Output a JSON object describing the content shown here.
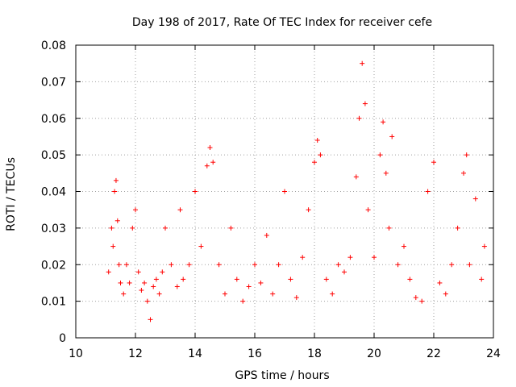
{
  "chart_data": {
    "type": "scatter",
    "title": "Day 198 of 2017, Rate Of TEC Index for receiver cefe",
    "xlabel": "GPS time / hours",
    "ylabel": "ROTI / TECUs",
    "xlim": [
      10,
      24
    ],
    "ylim": [
      0,
      0.08
    ],
    "xticks": [
      "10",
      "12",
      "14",
      "16",
      "18",
      "20",
      "22",
      "24"
    ],
    "yticks": [
      "0",
      "0.01",
      "0.02",
      "0.03",
      "0.04",
      "0.05",
      "0.06",
      "0.07",
      "0.08"
    ],
    "grid": true,
    "marker": "+",
    "marker_color": "#ff0000",
    "series": [
      {
        "name": "ROTI",
        "x": [
          11.1,
          11.2,
          11.25,
          11.3,
          11.35,
          11.4,
          11.45,
          11.5,
          11.6,
          11.7,
          11.8,
          11.9,
          12.0,
          12.1,
          12.2,
          12.3,
          12.4,
          12.5,
          12.6,
          12.7,
          12.8,
          12.9,
          13.0,
          13.2,
          13.4,
          13.5,
          13.6,
          13.8,
          14.0,
          14.2,
          14.4,
          14.5,
          14.6,
          14.8,
          15.0,
          15.2,
          15.4,
          15.6,
          15.8,
          16.0,
          16.2,
          16.4,
          16.6,
          16.8,
          17.0,
          17.2,
          17.4,
          17.6,
          17.8,
          18.0,
          18.1,
          18.2,
          18.4,
          18.6,
          18.8,
          19.0,
          19.2,
          19.4,
          19.5,
          19.6,
          19.7,
          19.8,
          20.0,
          20.2,
          20.3,
          20.4,
          20.5,
          20.6,
          20.8,
          21.0,
          21.2,
          21.4,
          21.6,
          21.8,
          22.0,
          22.2,
          22.4,
          22.6,
          22.8,
          23.0,
          23.1,
          23.2,
          23.4,
          23.6,
          23.7
        ],
        "y": [
          0.018,
          0.03,
          0.025,
          0.04,
          0.043,
          0.032,
          0.02,
          0.015,
          0.012,
          0.02,
          0.015,
          0.03,
          0.035,
          0.018,
          0.013,
          0.015,
          0.01,
          0.005,
          0.014,
          0.016,
          0.012,
          0.018,
          0.03,
          0.02,
          0.014,
          0.035,
          0.016,
          0.02,
          0.04,
          0.025,
          0.047,
          0.052,
          0.048,
          0.02,
          0.012,
          0.03,
          0.016,
          0.01,
          0.014,
          0.02,
          0.015,
          0.028,
          0.012,
          0.02,
          0.04,
          0.016,
          0.011,
          0.022,
          0.035,
          0.048,
          0.054,
          0.05,
          0.016,
          0.012,
          0.02,
          0.018,
          0.022,
          0.044,
          0.06,
          0.075,
          0.064,
          0.035,
          0.022,
          0.05,
          0.059,
          0.045,
          0.03,
          0.055,
          0.02,
          0.025,
          0.016,
          0.011,
          0.01,
          0.04,
          0.048,
          0.015,
          0.012,
          0.02,
          0.03,
          0.045,
          0.05,
          0.02,
          0.038,
          0.016,
          0.025
        ]
      }
    ]
  }
}
